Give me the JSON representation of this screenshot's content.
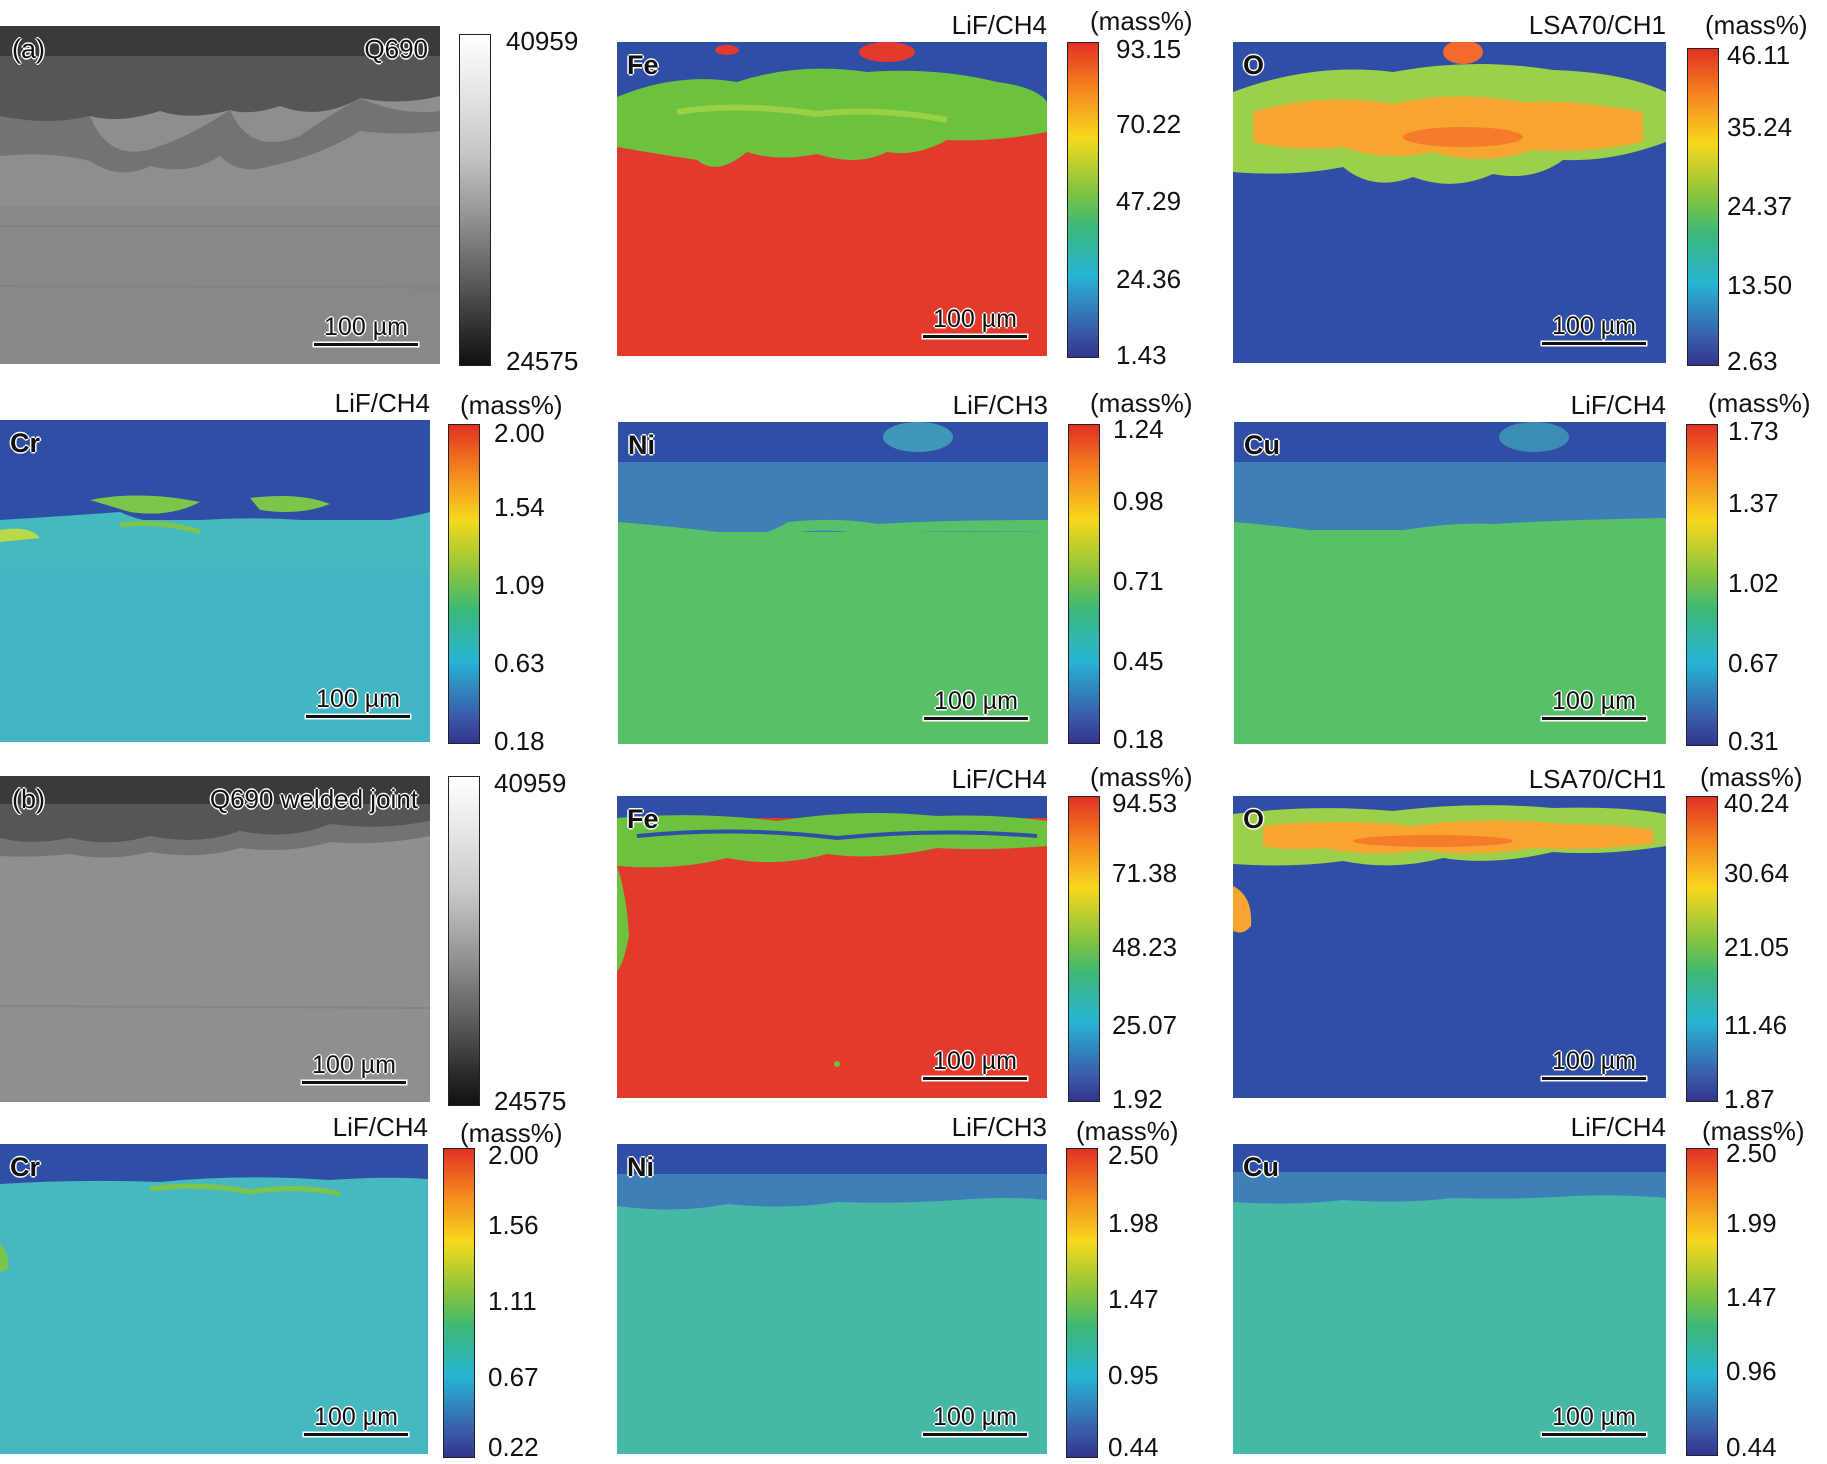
{
  "section_a": {
    "label": "(a)",
    "sem": {
      "sample": "Q690",
      "scale": "100 µm",
      "scale_max": "40959",
      "scale_min": "24575"
    },
    "maps": [
      {
        "element": "Fe",
        "crystal": "LiF/CH4",
        "unit": "(mass%)",
        "scale": "100 µm",
        "ticks": [
          "93.15",
          "70.22",
          "47.29",
          "24.36",
          "1.43"
        ]
      },
      {
        "element": "O",
        "crystal": "LSA70/CH1",
        "unit": "(mass%)",
        "scale": "100 µm",
        "ticks": [
          "46.11",
          "35.24",
          "24.37",
          "13.50",
          "2.63"
        ]
      },
      {
        "element": "Cr",
        "crystal": "LiF/CH4",
        "unit": "(mass%)",
        "scale": "100 µm",
        "ticks": [
          "2.00",
          "1.54",
          "1.09",
          "0.63",
          "0.18"
        ]
      },
      {
        "element": "Ni",
        "crystal": "LiF/CH3",
        "unit": "(mass%)",
        "scale": "100 µm",
        "ticks": [
          "1.24",
          "0.98",
          "0.71",
          "0.45",
          "0.18"
        ]
      },
      {
        "element": "Cu",
        "crystal": "LiF/CH4",
        "unit": "(mass%)",
        "scale": "100 µm",
        "ticks": [
          "1.73",
          "1.37",
          "1.02",
          "0.67",
          "0.31"
        ]
      }
    ]
  },
  "section_b": {
    "label": "(b)",
    "sem": {
      "sample": "Q690 welded joint",
      "scale": "100 µm",
      "scale_max": "40959",
      "scale_min": "24575"
    },
    "maps": [
      {
        "element": "Fe",
        "crystal": "LiF/CH4",
        "unit": "(mass%)",
        "scale": "100 µm",
        "ticks": [
          "94.53",
          "71.38",
          "48.23",
          "25.07",
          "1.92"
        ]
      },
      {
        "element": "O",
        "crystal": "LSA70/CH1",
        "unit": "(mass%)",
        "scale": "100 µm",
        "ticks": [
          "40.24",
          "30.64",
          "21.05",
          "11.46",
          "1.87"
        ]
      },
      {
        "element": "Cr",
        "crystal": "LiF/CH4",
        "unit": "(mass%)",
        "scale": "100 µm",
        "ticks": [
          "2.00",
          "1.56",
          "1.11",
          "0.67",
          "0.22"
        ]
      },
      {
        "element": "Ni",
        "crystal": "LiF/CH3",
        "unit": "(mass%)",
        "scale": "100 µm",
        "ticks": [
          "2.50",
          "1.98",
          "1.47",
          "0.95",
          "0.44"
        ]
      },
      {
        "element": "Cu",
        "crystal": "LiF/CH4",
        "unit": "(mass%)",
        "scale": "100 µm",
        "ticks": [
          "2.50",
          "1.99",
          "1.47",
          "0.96",
          "0.44"
        ]
      }
    ]
  },
  "colors": {
    "substrate_red": "#e23a2c",
    "matrix_green": "#57c35a",
    "matrix_teal": "#46b8a6",
    "background_blue": "#2f4fa6",
    "oxide_orange": "#f7a530"
  }
}
